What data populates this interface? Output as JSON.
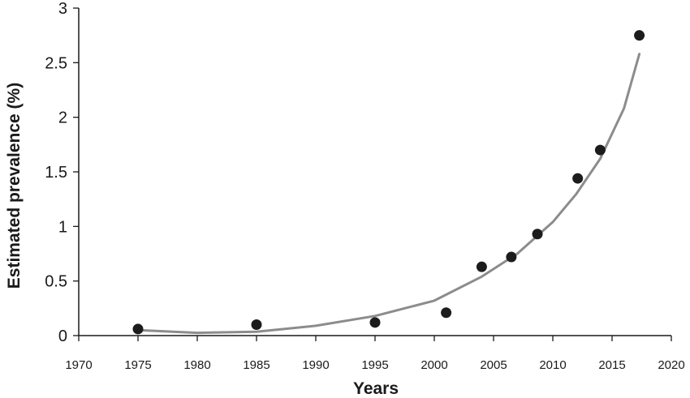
{
  "chart_data": {
    "type": "scatter",
    "title": "",
    "xlabel": "Years",
    "ylabel": "Estimated prevalence (%)",
    "xlim": [
      1970,
      2020
    ],
    "ylim": [
      0,
      3
    ],
    "x_ticks": [
      1970,
      1975,
      1980,
      1985,
      1990,
      1995,
      2000,
      2005,
      2010,
      2015,
      2020
    ],
    "y_ticks": [
      0,
      0.5,
      1,
      1.5,
      2,
      2.5,
      3
    ],
    "y_tick_labels": [
      "0",
      "0.5",
      "1",
      "1.5",
      "2",
      "2.5",
      "3"
    ],
    "grid": false,
    "legend": "none",
    "points": [
      {
        "x": 1975,
        "y": 0.06
      },
      {
        "x": 1985,
        "y": 0.1
      },
      {
        "x": 1995,
        "y": 0.12
      },
      {
        "x": 2001,
        "y": 0.21
      },
      {
        "x": 2004,
        "y": 0.63
      },
      {
        "x": 2006.5,
        "y": 0.72
      },
      {
        "x": 2008.7,
        "y": 0.93
      },
      {
        "x": 2012.1,
        "y": 1.44
      },
      {
        "x": 2014,
        "y": 1.7
      },
      {
        "x": 2017.3,
        "y": 2.75
      }
    ],
    "trend_curve": {
      "x": [
        1975,
        1980,
        1985,
        1990,
        1995,
        2000,
        2004,
        2007,
        2010,
        2012,
        2014,
        2016,
        2017.3
      ],
      "y": [
        0.05,
        0.025,
        0.035,
        0.09,
        0.18,
        0.32,
        0.54,
        0.75,
        1.04,
        1.3,
        1.62,
        2.08,
        2.58
      ]
    },
    "colors": {
      "point": "#1c1c1c",
      "curve": "#8c8c8c",
      "axis": "#1a1a1a"
    }
  }
}
